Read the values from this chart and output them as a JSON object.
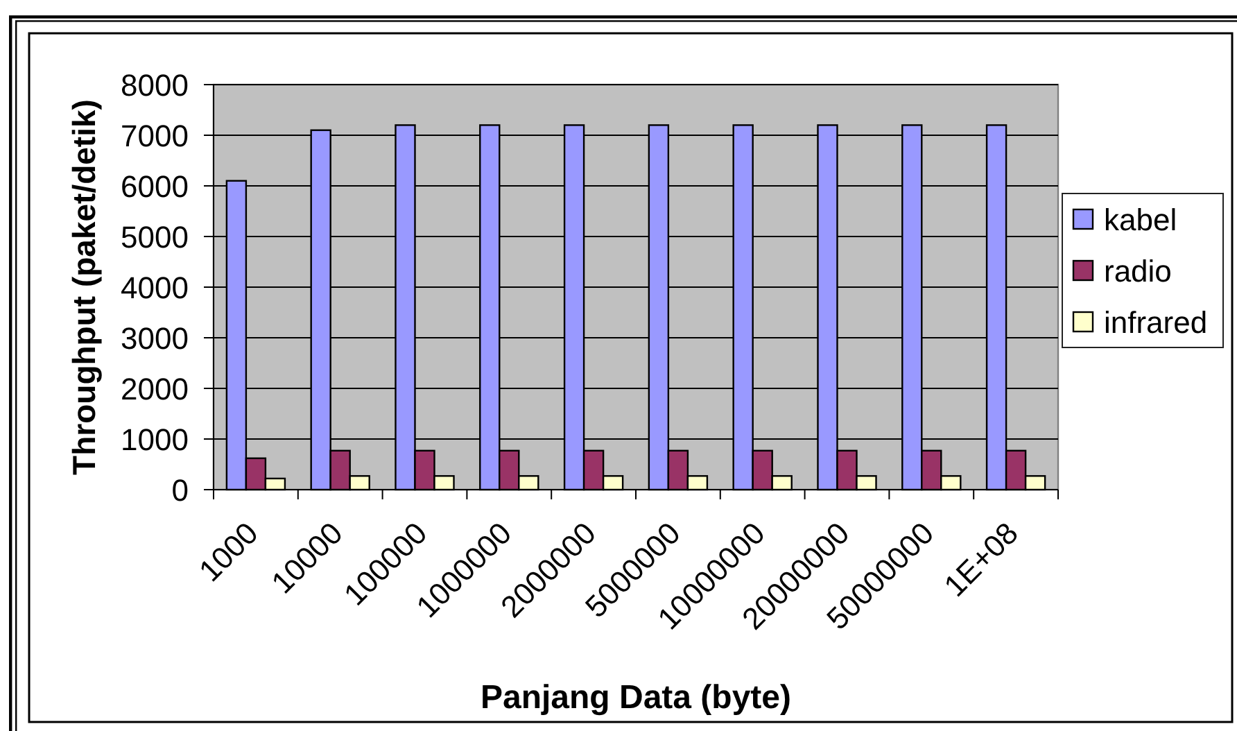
{
  "chart_data": {
    "type": "bar",
    "xlabel": "Panjang Data (byte)",
    "ylabel": "Throughput (paket/detik)",
    "categories": [
      "1000",
      "10000",
      "100000",
      "1000000",
      "2000000",
      "5000000",
      "10000000",
      "20000000",
      "50000000",
      "1E+08"
    ],
    "series": [
      {
        "name": "kabel",
        "color": "#9999ff",
        "values": [
          6100,
          7100,
          7200,
          7200,
          7200,
          7200,
          7200,
          7200,
          7200,
          7200
        ]
      },
      {
        "name": "radio",
        "color": "#993366",
        "values": [
          620,
          770,
          770,
          770,
          770,
          770,
          770,
          770,
          770,
          770
        ]
      },
      {
        "name": "infrared",
        "color": "#ffffcc",
        "values": [
          220,
          270,
          270,
          270,
          270,
          270,
          270,
          270,
          270,
          270
        ]
      }
    ],
    "ylim": [
      0,
      8000
    ],
    "yticks": [
      0,
      1000,
      2000,
      3000,
      4000,
      5000,
      6000,
      7000,
      8000
    ],
    "grid": "y",
    "legend": "right"
  }
}
